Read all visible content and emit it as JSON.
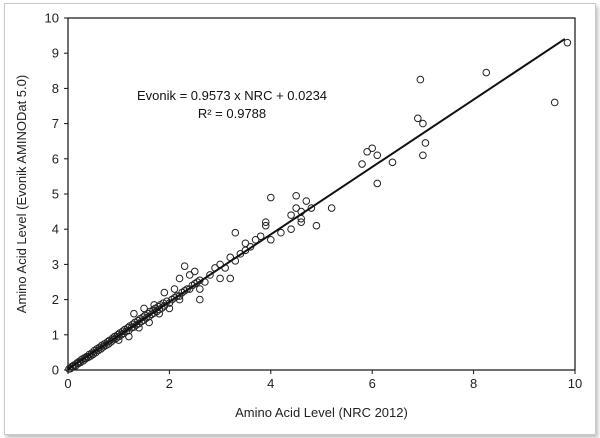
{
  "chart_data": {
    "type": "scatter",
    "title": "",
    "xlabel": "Amino Acid Level (NRC 2012)",
    "ylabel": "Amino Acid Level (Evonik AMINODat 5.0)",
    "xlim": [
      0,
      10
    ],
    "ylim": [
      0,
      10
    ],
    "xticks": [
      "0",
      "2",
      "4",
      "6",
      "8",
      "10"
    ],
    "yticks": [
      "0",
      "1",
      "2",
      "3",
      "4",
      "5",
      "6",
      "7",
      "8",
      "9",
      "10"
    ],
    "grid": false,
    "legend": "none",
    "marker": "open-circle",
    "marker_color": "#222222",
    "trendline": {
      "slope": 0.9573,
      "intercept": 0.0234,
      "x_range": [
        0,
        9.8
      ]
    },
    "annotations": [
      "Evonik = 0.9573 x NRC + 0.0234",
      "R² = 0.9788"
    ],
    "series": [
      {
        "points": [
          [
            0.02,
            0.03
          ],
          [
            0.05,
            0.04
          ],
          [
            0.08,
            0.1
          ],
          [
            0.1,
            0.09
          ],
          [
            0.12,
            0.14
          ],
          [
            0.15,
            0.12
          ],
          [
            0.18,
            0.2
          ],
          [
            0.2,
            0.18
          ],
          [
            0.22,
            0.24
          ],
          [
            0.25,
            0.22
          ],
          [
            0.27,
            0.3
          ],
          [
            0.3,
            0.26
          ],
          [
            0.32,
            0.34
          ],
          [
            0.35,
            0.32
          ],
          [
            0.37,
            0.38
          ],
          [
            0.4,
            0.36
          ],
          [
            0.42,
            0.44
          ],
          [
            0.45,
            0.4
          ],
          [
            0.47,
            0.48
          ],
          [
            0.5,
            0.45
          ],
          [
            0.52,
            0.55
          ],
          [
            0.55,
            0.5
          ],
          [
            0.57,
            0.6
          ],
          [
            0.6,
            0.56
          ],
          [
            0.62,
            0.64
          ],
          [
            0.65,
            0.6
          ],
          [
            0.67,
            0.7
          ],
          [
            0.7,
            0.66
          ],
          [
            0.72,
            0.74
          ],
          [
            0.75,
            0.7
          ],
          [
            0.78,
            0.8
          ],
          [
            0.8,
            0.74
          ],
          [
            0.82,
            0.84
          ],
          [
            0.85,
            0.8
          ],
          [
            0.88,
            0.9
          ],
          [
            0.9,
            0.86
          ],
          [
            0.92,
            0.95
          ],
          [
            0.95,
            0.9
          ],
          [
            0.98,
            1.0
          ],
          [
            1.0,
            0.95
          ],
          [
            1.02,
            1.05
          ],
          [
            1.05,
            1.0
          ],
          [
            1.08,
            1.1
          ],
          [
            1.1,
            1.04
          ],
          [
            1.12,
            1.15
          ],
          [
            1.15,
            1.1
          ],
          [
            1.18,
            1.2
          ],
          [
            1.2,
            1.12
          ],
          [
            1.22,
            1.25
          ],
          [
            1.25,
            1.2
          ],
          [
            1.28,
            1.3
          ],
          [
            1.3,
            1.22
          ],
          [
            1.32,
            1.35
          ],
          [
            1.35,
            1.28
          ],
          [
            1.38,
            1.4
          ],
          [
            1.4,
            1.32
          ],
          [
            1.42,
            1.45
          ],
          [
            1.45,
            1.38
          ],
          [
            1.48,
            1.5
          ],
          [
            1.5,
            1.42
          ],
          [
            1.52,
            1.55
          ],
          [
            1.55,
            1.48
          ],
          [
            1.58,
            1.6
          ],
          [
            1.6,
            1.52
          ],
          [
            1.62,
            1.66
          ],
          [
            1.65,
            1.58
          ],
          [
            1.68,
            1.7
          ],
          [
            1.7,
            1.62
          ],
          [
            1.72,
            1.75
          ],
          [
            1.75,
            1.66
          ],
          [
            1.78,
            1.8
          ],
          [
            1.8,
            1.72
          ],
          [
            1.82,
            1.85
          ],
          [
            1.85,
            1.76
          ],
          [
            1.88,
            1.9
          ],
          [
            1.9,
            1.82
          ],
          [
            1.95,
            1.95
          ],
          [
            2.0,
            1.9
          ],
          [
            2.05,
            2.0
          ],
          [
            2.1,
            2.05
          ],
          [
            2.15,
            2.1
          ],
          [
            2.2,
            2.1
          ],
          [
            2.25,
            2.2
          ],
          [
            2.3,
            2.25
          ],
          [
            2.35,
            2.3
          ],
          [
            2.4,
            2.3
          ],
          [
            2.45,
            2.4
          ],
          [
            2.5,
            2.45
          ],
          [
            2.55,
            2.5
          ],
          [
            2.6,
            2.55
          ],
          [
            1.3,
            1.6
          ],
          [
            1.5,
            1.75
          ],
          [
            1.7,
            1.85
          ],
          [
            1.9,
            2.2
          ],
          [
            2.1,
            2.3
          ],
          [
            2.3,
            2.95
          ],
          [
            2.2,
            2.6
          ],
          [
            2.4,
            2.7
          ],
          [
            2.5,
            2.8
          ],
          [
            2.6,
            2.3
          ],
          [
            2.7,
            2.5
          ],
          [
            2.8,
            2.7
          ],
          [
            2.9,
            2.9
          ],
          [
            3.0,
            3.0
          ],
          [
            3.1,
            2.9
          ],
          [
            3.2,
            3.2
          ],
          [
            3.3,
            3.1
          ],
          [
            3.4,
            3.3
          ],
          [
            3.5,
            3.4
          ],
          [
            3.6,
            3.5
          ],
          [
            3.3,
            3.9
          ],
          [
            3.5,
            3.6
          ],
          [
            3.7,
            3.7
          ],
          [
            3.8,
            3.8
          ],
          [
            3.9,
            4.1
          ],
          [
            4.0,
            3.7
          ],
          [
            3.9,
            4.2
          ],
          [
            4.0,
            4.9
          ],
          [
            4.2,
            3.9
          ],
          [
            4.4,
            4.0
          ],
          [
            4.5,
            4.6
          ],
          [
            4.6,
            4.5
          ],
          [
            4.5,
            4.95
          ],
          [
            4.6,
            4.2
          ],
          [
            4.7,
            4.8
          ],
          [
            4.8,
            4.6
          ],
          [
            4.9,
            4.1
          ],
          [
            5.2,
            4.6
          ],
          [
            4.4,
            4.4
          ],
          [
            4.6,
            4.3
          ],
          [
            1.0,
            0.85
          ],
          [
            1.2,
            0.95
          ],
          [
            1.4,
            1.2
          ],
          [
            1.6,
            1.35
          ],
          [
            1.8,
            1.6
          ],
          [
            2.0,
            1.75
          ],
          [
            2.2,
            2.0
          ],
          [
            2.6,
            2.0
          ],
          [
            3.0,
            2.6
          ],
          [
            3.2,
            2.6
          ],
          [
            5.8,
            5.85
          ],
          [
            5.9,
            6.2
          ],
          [
            6.0,
            6.3
          ],
          [
            6.1,
            5.3
          ],
          [
            6.1,
            6.1
          ],
          [
            6.4,
            5.9
          ],
          [
            6.9,
            7.15
          ],
          [
            7.0,
            6.1
          ],
          [
            7.05,
            6.45
          ],
          [
            7.0,
            7.0
          ],
          [
            6.95,
            8.25
          ],
          [
            8.25,
            8.45
          ],
          [
            9.6,
            7.6
          ],
          [
            9.85,
            9.3
          ]
        ]
      }
    ]
  }
}
